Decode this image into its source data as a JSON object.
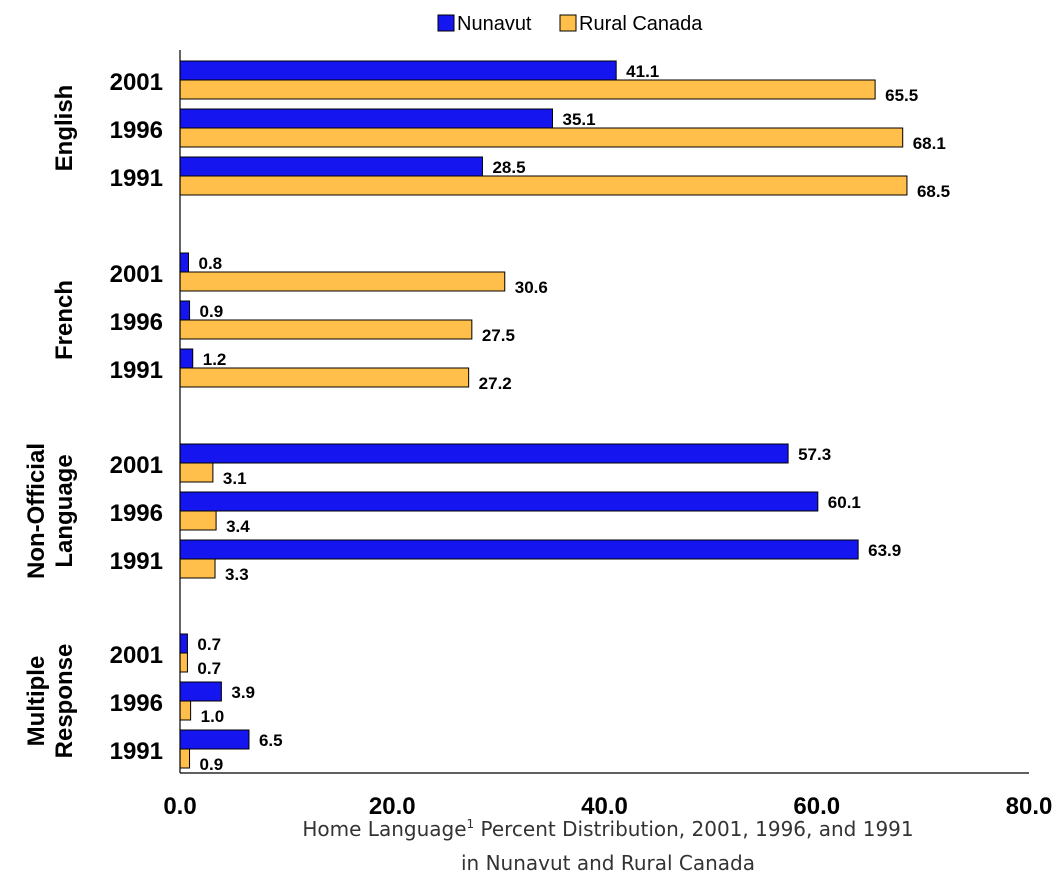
{
  "chart_data": {
    "type": "bar",
    "orientation": "horizontal",
    "groups": [
      {
        "label_lines": [
          "English"
        ],
        "years": [
          "2001",
          "1996",
          "1991"
        ]
      },
      {
        "label_lines": [
          "French"
        ],
        "years": [
          "2001",
          "1996",
          "1991"
        ]
      },
      {
        "label_lines": [
          "Non-Official",
          "Language"
        ],
        "years": [
          "2001",
          "1996",
          "1991"
        ]
      },
      {
        "label_lines": [
          "Multiple",
          "Response"
        ],
        "years": [
          "2001",
          "1996",
          "1991"
        ]
      }
    ],
    "series": [
      {
        "name": "Nunavut",
        "color": "#1515f0",
        "values": [
          [
            41.1,
            35.1,
            28.5
          ],
          [
            0.8,
            0.9,
            1.2
          ],
          [
            57.3,
            60.1,
            63.9
          ],
          [
            0.7,
            3.9,
            6.5
          ]
        ],
        "labels": [
          [
            "41.1",
            "35.1",
            "28.5"
          ],
          [
            "0.8",
            "0.9",
            "1.2"
          ],
          [
            "57.3",
            "60.1",
            "63.9"
          ],
          [
            "0.7",
            "3.9",
            "6.5"
          ]
        ]
      },
      {
        "name": "Rural Canada",
        "color": "#ffbf4a",
        "values": [
          [
            65.5,
            68.1,
            68.5
          ],
          [
            30.6,
            27.5,
            27.2
          ],
          [
            3.1,
            3.4,
            3.3
          ],
          [
            0.7,
            1.0,
            0.9
          ]
        ],
        "labels": [
          [
            "65.5",
            "68.1",
            "68.5"
          ],
          [
            "30.6",
            "27.5",
            "27.2"
          ],
          [
            "3.1",
            "3.4",
            "3.3"
          ],
          [
            "0.7",
            "1.0",
            "0.9"
          ]
        ]
      }
    ],
    "xlim": [
      0,
      80
    ],
    "xticks": [
      0,
      20,
      40,
      60,
      80
    ],
    "xtick_labels": [
      "0.0",
      "20.0",
      "40.0",
      "60.0",
      "80.0"
    ],
    "legend_position": "top-center",
    "grid": false,
    "caption_line1_pre": "Home Language",
    "caption_sup": "1",
    "caption_line1_post": " Percent Distribution, 2001, 1996, and 1991",
    "caption_line2": "in Nunavut and Rural Canada"
  }
}
